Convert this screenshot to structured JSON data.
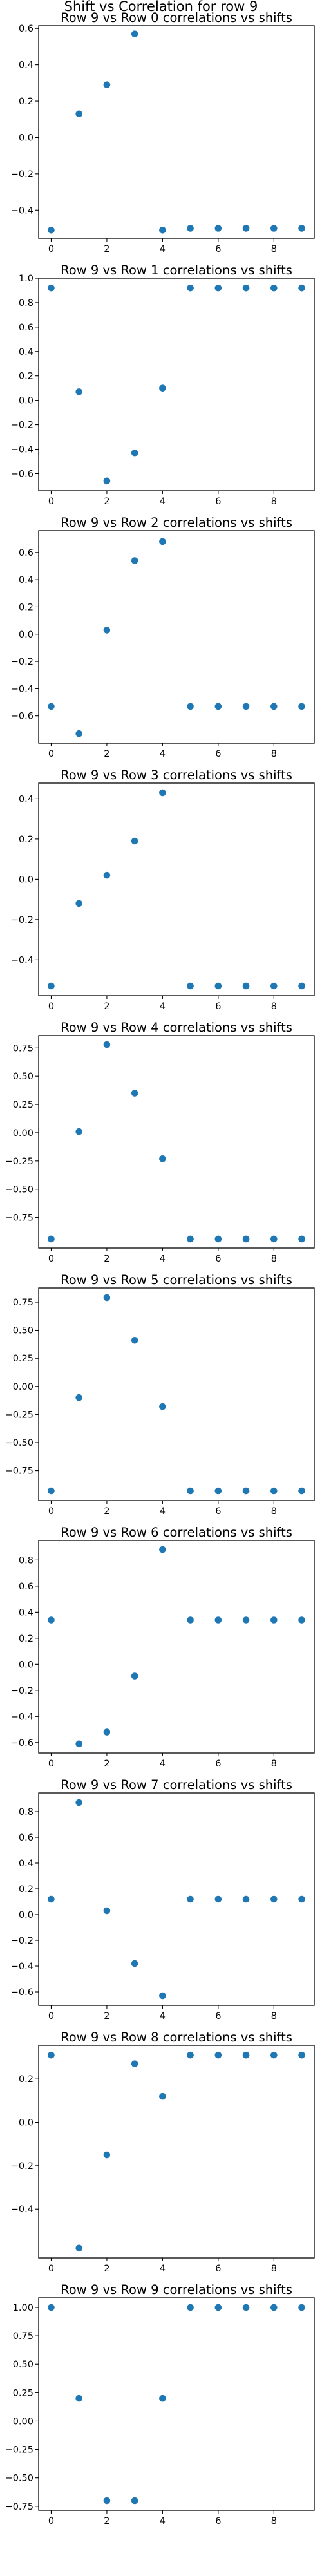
{
  "figure": {
    "suptitle": "Shift vs Correlation for row 9"
  },
  "style": {
    "point_color": "#1f77b4",
    "background": "#ffffff",
    "grid": false,
    "legend": "none"
  },
  "chart_data": [
    {
      "type": "scatter",
      "title": "Row 9 vs Row 0 correlations vs shifts",
      "x": [
        0,
        1,
        2,
        3,
        4,
        5,
        6,
        7,
        8,
        9
      ],
      "y": [
        -0.51,
        0.13,
        0.29,
        0.57,
        -0.51,
        -0.5,
        -0.5,
        -0.5,
        -0.5,
        -0.5
      ],
      "xlim": [
        -0.45,
        9.45
      ],
      "ylim": [
        -0.555,
        0.615
      ],
      "xticks": [
        0,
        2,
        4,
        6,
        8
      ],
      "yticks": [
        -0.4,
        -0.2,
        0.0,
        0.2,
        0.4,
        0.6
      ],
      "yticklabels": [
        "−0.4",
        "−0.2",
        "0.0",
        "0.2",
        "0.4",
        "0.6"
      ]
    },
    {
      "type": "scatter",
      "title": "Row 9 vs Row 1 correlations vs shifts",
      "x": [
        0,
        1,
        2,
        3,
        4,
        5,
        6,
        7,
        8,
        9
      ],
      "y": [
        0.92,
        0.07,
        -0.66,
        -0.43,
        0.1,
        0.92,
        0.92,
        0.92,
        0.92,
        0.92
      ],
      "xlim": [
        -0.45,
        9.45
      ],
      "ylim": [
        -0.74,
        1.0
      ],
      "xticks": [
        0,
        2,
        4,
        6,
        8
      ],
      "yticks": [
        -0.6,
        -0.4,
        -0.2,
        0.0,
        0.2,
        0.4,
        0.6,
        0.8,
        1.0
      ],
      "yticklabels": [
        "−0.6",
        "−0.4",
        "−0.2",
        "0.0",
        "0.2",
        "0.4",
        "0.6",
        "0.8",
        "1.0"
      ]
    },
    {
      "type": "scatter",
      "title": "Row 9 vs Row 2 correlations vs shifts",
      "x": [
        0,
        1,
        2,
        3,
        4,
        5,
        6,
        7,
        8,
        9
      ],
      "y": [
        -0.53,
        -0.73,
        0.03,
        0.54,
        0.68,
        -0.53,
        -0.53,
        -0.53,
        -0.53,
        -0.53
      ],
      "xlim": [
        -0.45,
        9.45
      ],
      "ylim": [
        -0.8,
        0.76
      ],
      "xticks": [
        0,
        2,
        4,
        6,
        8
      ],
      "yticks": [
        -0.6,
        -0.4,
        -0.2,
        0.0,
        0.2,
        0.4,
        0.6
      ],
      "yticklabels": [
        "−0.6",
        "−0.4",
        "−0.2",
        "0.0",
        "0.2",
        "0.4",
        "0.6"
      ]
    },
    {
      "type": "scatter",
      "title": "Row 9 vs Row 3 correlations vs shifts",
      "x": [
        0,
        1,
        2,
        3,
        4,
        5,
        6,
        7,
        8,
        9
      ],
      "y": [
        -0.53,
        -0.12,
        0.02,
        0.19,
        0.43,
        -0.53,
        -0.53,
        -0.53,
        -0.53,
        -0.53
      ],
      "xlim": [
        -0.45,
        9.45
      ],
      "ylim": [
        -0.578,
        0.478
      ],
      "xticks": [
        0,
        2,
        4,
        6,
        8
      ],
      "yticks": [
        -0.4,
        -0.2,
        0.0,
        0.2,
        0.4
      ],
      "yticklabels": [
        "−0.4",
        "−0.2",
        "0.0",
        "0.2",
        "0.4"
      ]
    },
    {
      "type": "scatter",
      "title": "Row 9 vs Row 4 correlations vs shifts",
      "x": [
        0,
        1,
        2,
        3,
        4,
        5,
        6,
        7,
        8,
        9
      ],
      "y": [
        -0.94,
        0.01,
        0.78,
        0.35,
        -0.23,
        -0.94,
        -0.94,
        -0.94,
        -0.94,
        -0.94
      ],
      "xlim": [
        -0.45,
        9.45
      ],
      "ylim": [
        -1.02,
        0.86
      ],
      "xticks": [
        0,
        2,
        4,
        6,
        8
      ],
      "yticks": [
        -0.75,
        -0.5,
        -0.25,
        0.0,
        0.25,
        0.5,
        0.75
      ],
      "yticklabels": [
        "−0.75",
        "−0.50",
        "−0.25",
        "0.00",
        "0.25",
        "0.50",
        "0.75"
      ]
    },
    {
      "type": "scatter",
      "title": "Row 9 vs Row 5 correlations vs shifts",
      "x": [
        0,
        1,
        2,
        3,
        4,
        5,
        6,
        7,
        8,
        9
      ],
      "y": [
        -0.93,
        -0.1,
        0.79,
        0.41,
        -0.18,
        -0.93,
        -0.93,
        -0.93,
        -0.93,
        -0.93
      ],
      "xlim": [
        -0.45,
        9.45
      ],
      "ylim": [
        -1.016,
        0.876
      ],
      "xticks": [
        0,
        2,
        4,
        6,
        8
      ],
      "yticks": [
        -0.75,
        -0.5,
        -0.25,
        0.0,
        0.25,
        0.5,
        0.75
      ],
      "yticklabels": [
        "−0.75",
        "−0.50",
        "−0.25",
        "0.00",
        "0.25",
        "0.50",
        "0.75"
      ]
    },
    {
      "type": "scatter",
      "title": "Row 9 vs Row 6 correlations vs shifts",
      "x": [
        0,
        1,
        2,
        3,
        4,
        5,
        6,
        7,
        8,
        9
      ],
      "y": [
        0.34,
        -0.61,
        -0.52,
        -0.09,
        0.88,
        0.34,
        0.34,
        0.34,
        0.34,
        0.34
      ],
      "xlim": [
        -0.45,
        9.45
      ],
      "ylim": [
        -0.68,
        0.95
      ],
      "xticks": [
        0,
        2,
        4,
        6,
        8
      ],
      "yticks": [
        -0.6,
        -0.4,
        -0.2,
        0.0,
        0.2,
        0.4,
        0.6,
        0.8
      ],
      "yticklabels": [
        "−0.6",
        "−0.4",
        "−0.2",
        "0.0",
        "0.2",
        "0.4",
        "0.6",
        "0.8"
      ]
    },
    {
      "type": "scatter",
      "title": "Row 9 vs Row 7 correlations vs shifts",
      "x": [
        0,
        1,
        2,
        3,
        4,
        5,
        6,
        7,
        8,
        9
      ],
      "y": [
        0.12,
        0.87,
        0.03,
        -0.38,
        -0.63,
        0.12,
        0.12,
        0.12,
        0.12,
        0.12
      ],
      "xlim": [
        -0.45,
        9.45
      ],
      "ylim": [
        -0.705,
        0.945
      ],
      "xticks": [
        0,
        2,
        4,
        6,
        8
      ],
      "yticks": [
        -0.6,
        -0.4,
        -0.2,
        0.0,
        0.2,
        0.4,
        0.6,
        0.8
      ],
      "yticklabels": [
        "−0.6",
        "−0.4",
        "−0.2",
        "0.0",
        "0.2",
        "0.4",
        "0.6",
        "0.8"
      ]
    },
    {
      "type": "scatter",
      "title": "Row 9 vs Row 8 correlations vs shifts",
      "x": [
        0,
        1,
        2,
        3,
        4,
        5,
        6,
        7,
        8,
        9
      ],
      "y": [
        0.31,
        -0.58,
        -0.15,
        0.27,
        0.12,
        0.31,
        0.31,
        0.31,
        0.31,
        0.31
      ],
      "xlim": [
        -0.45,
        9.45
      ],
      "ylim": [
        -0.625,
        0.355
      ],
      "xticks": [
        0,
        2,
        4,
        6,
        8
      ],
      "yticks": [
        -0.4,
        -0.2,
        0.0,
        0.2
      ],
      "yticklabels": [
        "−0.4",
        "−0.2",
        "0.0",
        "0.2"
      ]
    },
    {
      "type": "scatter",
      "title": "Row 9 vs Row 9 correlations vs shifts",
      "x": [
        0,
        1,
        2,
        3,
        4,
        5,
        6,
        7,
        8,
        9
      ],
      "y": [
        1.0,
        0.2,
        -0.7,
        -0.7,
        0.2,
        1.0,
        1.0,
        1.0,
        1.0,
        1.0
      ],
      "xlim": [
        -0.45,
        9.45
      ],
      "ylim": [
        -0.785,
        1.085
      ],
      "xticks": [
        0,
        2,
        4,
        6,
        8
      ],
      "yticks": [
        -0.75,
        -0.5,
        -0.25,
        0.0,
        0.25,
        0.5,
        0.75,
        1.0
      ],
      "yticklabels": [
        "−0.75",
        "−0.50",
        "−0.25",
        "0.00",
        "0.25",
        "0.50",
        "0.75",
        "1.00"
      ]
    }
  ]
}
